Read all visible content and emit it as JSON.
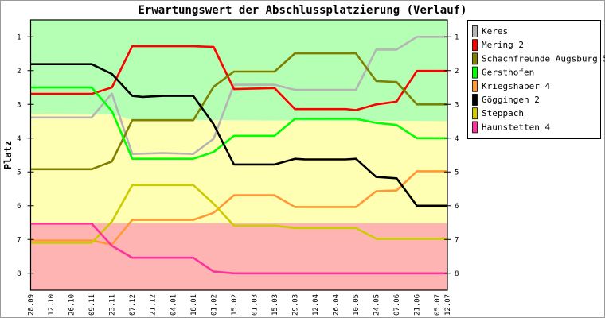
{
  "chart_data": {
    "type": "line",
    "title": "Erwartungswert der Abschlussplatzierung (Verlauf)",
    "ylabel": "Platz",
    "xlabel": "",
    "ylim": [
      0.5,
      8.5
    ],
    "y_inverted": true,
    "yticks": [
      1,
      2,
      3,
      4,
      5,
      6,
      7,
      8
    ],
    "x_unit": "days since 28.09",
    "xlim": [
      0,
      287
    ],
    "xticks": [
      {
        "label": "28.09",
        "day": 0
      },
      {
        "label": "12.10",
        "day": 14
      },
      {
        "label": "26.10",
        "day": 28
      },
      {
        "label": "09.11",
        "day": 42
      },
      {
        "label": "23.11",
        "day": 56
      },
      {
        "label": "07.12",
        "day": 70
      },
      {
        "label": "21.12",
        "day": 84
      },
      {
        "label": "04.01",
        "day": 98
      },
      {
        "label": "18.01",
        "day": 112
      },
      {
        "label": "01.02",
        "day": 126
      },
      {
        "label": "15.02",
        "day": 140
      },
      {
        "label": "01.03",
        "day": 154
      },
      {
        "label": "15.03",
        "day": 168
      },
      {
        "label": "29.03",
        "day": 182
      },
      {
        "label": "12.04",
        "day": 196
      },
      {
        "label": "26.04",
        "day": 210
      },
      {
        "label": "10.05",
        "day": 224
      },
      {
        "label": "24.05",
        "day": 238
      },
      {
        "label": "07.06",
        "day": 252
      },
      {
        "label": "21.06",
        "day": 266
      },
      {
        "label": "05.07",
        "day": 280
      },
      {
        "label": "12.07",
        "day": 287
      }
    ],
    "zones": [
      {
        "name": "promotion",
        "color": "#b4ffb4",
        "from": [
          [
            0,
            0.5
          ],
          [
            287,
            0.5
          ]
        ],
        "to": [
          [
            0,
            3.28
          ],
          [
            56,
            3.3
          ],
          [
            70,
            3.46
          ],
          [
            287,
            3.5
          ]
        ]
      },
      {
        "name": "middle",
        "color": "#ffffb4",
        "from": [
          [
            0,
            3.28
          ],
          [
            56,
            3.3
          ],
          [
            70,
            3.46
          ],
          [
            287,
            3.5
          ]
        ],
        "to": [
          [
            0,
            6.52
          ],
          [
            287,
            6.52
          ]
        ]
      },
      {
        "name": "relegation",
        "color": "#ffb4b4",
        "from": [
          [
            0,
            6.52
          ],
          [
            287,
            6.52
          ]
        ],
        "to": [
          [
            0,
            8.5
          ],
          [
            287,
            8.5
          ]
        ]
      }
    ],
    "legend_position": "right",
    "series": [
      {
        "name": "Keres",
        "color": "#b4b4b4",
        "points": [
          [
            0,
            3.39
          ],
          [
            42,
            3.39
          ],
          [
            56,
            2.68
          ],
          [
            70,
            4.47
          ],
          [
            91,
            4.44
          ],
          [
            112,
            4.47
          ],
          [
            126,
            4.02
          ],
          [
            140,
            2.42
          ],
          [
            168,
            2.42
          ],
          [
            182,
            2.57
          ],
          [
            224,
            2.57
          ],
          [
            238,
            1.38
          ],
          [
            252,
            1.38
          ],
          [
            266,
            1.0
          ],
          [
            287,
            1.0
          ]
        ]
      },
      {
        "name": "Mering 2",
        "color": "#ff0000",
        "points": [
          [
            0,
            2.69
          ],
          [
            42,
            2.69
          ],
          [
            56,
            2.5
          ],
          [
            70,
            1.28
          ],
          [
            112,
            1.28
          ],
          [
            126,
            1.3
          ],
          [
            140,
            2.55
          ],
          [
            168,
            2.52
          ],
          [
            182,
            3.14
          ],
          [
            217,
            3.14
          ],
          [
            224,
            3.17
          ],
          [
            238,
            3.0
          ],
          [
            252,
            2.92
          ],
          [
            266,
            2.01
          ],
          [
            287,
            2.01
          ]
        ]
      },
      {
        "name": "Schachfreunde Augsburg 5",
        "color": "#808000",
        "points": [
          [
            0,
            4.92
          ],
          [
            42,
            4.92
          ],
          [
            56,
            4.69
          ],
          [
            70,
            3.47
          ],
          [
            112,
            3.47
          ],
          [
            126,
            2.48
          ],
          [
            140,
            2.03
          ],
          [
            168,
            2.03
          ],
          [
            182,
            1.49
          ],
          [
            224,
            1.49
          ],
          [
            238,
            2.31
          ],
          [
            252,
            2.34
          ],
          [
            266,
            3.0
          ],
          [
            287,
            3.0
          ]
        ]
      },
      {
        "name": "Gersthofen",
        "color": "#00ff00",
        "points": [
          [
            0,
            2.5
          ],
          [
            42,
            2.5
          ],
          [
            56,
            3.2
          ],
          [
            70,
            4.61
          ],
          [
            112,
            4.61
          ],
          [
            126,
            4.41
          ],
          [
            140,
            3.93
          ],
          [
            168,
            3.93
          ],
          [
            182,
            3.43
          ],
          [
            224,
            3.43
          ],
          [
            238,
            3.55
          ],
          [
            252,
            3.61
          ],
          [
            266,
            4.0
          ],
          [
            287,
            4.0
          ]
        ]
      },
      {
        "name": "Kriegshaber 4",
        "color": "#ff9933",
        "points": [
          [
            0,
            7.03
          ],
          [
            42,
            7.03
          ],
          [
            56,
            7.15
          ],
          [
            70,
            6.42
          ],
          [
            112,
            6.42
          ],
          [
            126,
            6.21
          ],
          [
            140,
            5.69
          ],
          [
            168,
            5.69
          ],
          [
            182,
            6.04
          ],
          [
            224,
            6.04
          ],
          [
            238,
            5.57
          ],
          [
            252,
            5.55
          ],
          [
            266,
            4.98
          ],
          [
            287,
            4.98
          ]
        ]
      },
      {
        "name": "Göggingen 2",
        "color": "#000000",
        "points": [
          [
            0,
            1.81
          ],
          [
            42,
            1.81
          ],
          [
            56,
            2.1
          ],
          [
            70,
            2.75
          ],
          [
            77,
            2.78
          ],
          [
            91,
            2.75
          ],
          [
            112,
            2.75
          ],
          [
            126,
            3.59
          ],
          [
            140,
            4.78
          ],
          [
            168,
            4.78
          ],
          [
            182,
            4.61
          ],
          [
            189,
            4.63
          ],
          [
            217,
            4.63
          ],
          [
            224,
            4.61
          ],
          [
            238,
            5.15
          ],
          [
            252,
            5.19
          ],
          [
            266,
            6.0
          ],
          [
            287,
            6.0
          ]
        ]
      },
      {
        "name": "Steppach",
        "color": "#cccc00",
        "points": [
          [
            0,
            7.1
          ],
          [
            42,
            7.1
          ],
          [
            56,
            6.47
          ],
          [
            70,
            5.39
          ],
          [
            112,
            5.39
          ],
          [
            126,
            5.94
          ],
          [
            140,
            6.59
          ],
          [
            168,
            6.59
          ],
          [
            182,
            6.66
          ],
          [
            224,
            6.66
          ],
          [
            238,
            6.98
          ],
          [
            287,
            6.98
          ]
        ]
      },
      {
        "name": "Haunstetten 4",
        "color": "#ff3399",
        "points": [
          [
            0,
            6.53
          ],
          [
            42,
            6.53
          ],
          [
            56,
            7.19
          ],
          [
            70,
            7.54
          ],
          [
            112,
            7.54
          ],
          [
            126,
            7.95
          ],
          [
            140,
            8.0
          ],
          [
            287,
            8.0
          ]
        ]
      }
    ]
  }
}
